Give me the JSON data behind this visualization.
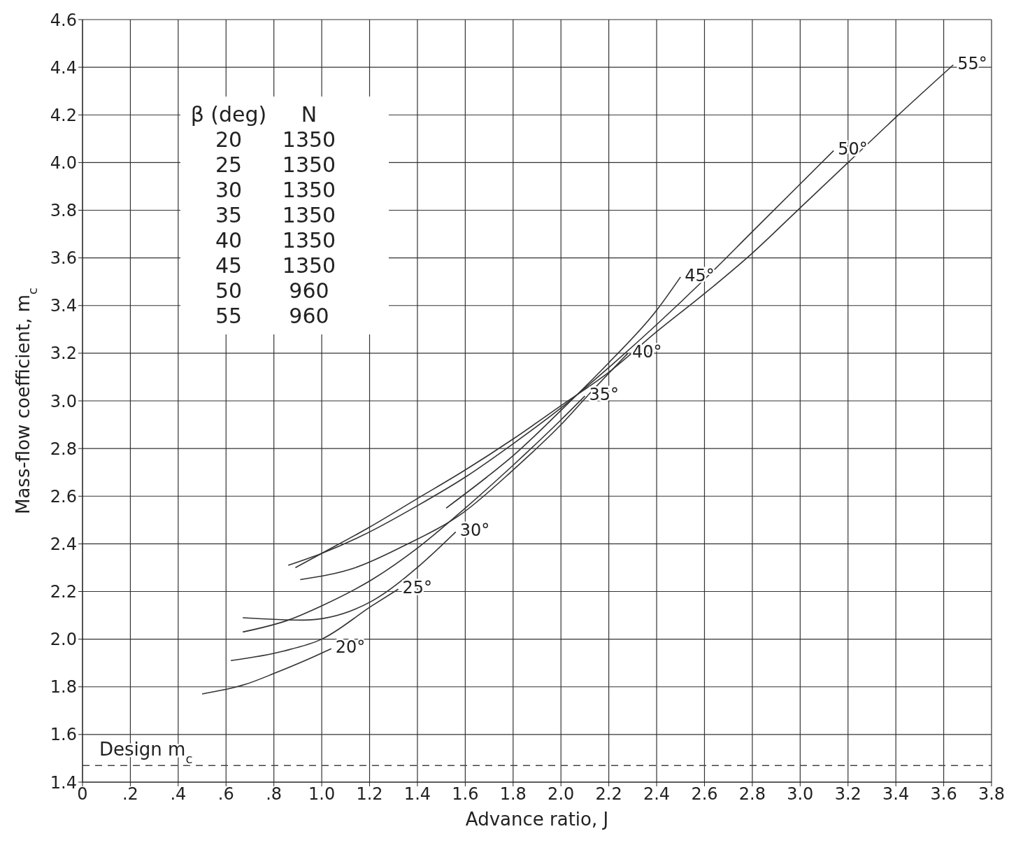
{
  "chart_data": {
    "type": "line",
    "xlabel": "Advance ratio, J",
    "ylabel": "Mass-flow coefficient, m$_{c}$",
    "xlim": [
      0,
      3.8
    ],
    "ylim": [
      1.4,
      4.6
    ],
    "xticks": [
      0,
      {
        "value": 0.2,
        "label": ".2"
      },
      {
        "value": 0.4,
        "label": ".4"
      },
      {
        "value": 0.6,
        "label": ".6"
      },
      {
        "value": 0.8,
        "label": ".8"
      },
      {
        "value": 1,
        "label": "1.0"
      },
      1.2,
      1.4,
      1.6,
      1.8,
      {
        "value": 2,
        "label": "2.0"
      },
      2.2,
      2.4,
      2.6,
      2.8,
      {
        "value": 3,
        "label": "3.0"
      },
      3.2,
      3.4,
      3.6,
      3.8
    ],
    "yticks": [
      1.4,
      1.6,
      1.8,
      {
        "value": 2,
        "label": "2.0"
      },
      2.2,
      2.4,
      2.6,
      2.8,
      {
        "value": 3,
        "label": "3.0"
      },
      3.2,
      3.4,
      3.6,
      3.8,
      {
        "value": 4,
        "label": "4.0"
      },
      4.2,
      4.4,
      4.6
    ],
    "grid": true,
    "legend": false,
    "marker": "none",
    "line_style": "solid",
    "series": [
      {
        "name": "20°",
        "color": "#333333",
        "x": [
          0.5,
          0.68,
          0.81,
          0.93,
          1.04
        ],
        "values": [
          1.77,
          1.81,
          1.86,
          1.91,
          1.96
        ]
      },
      {
        "name": "25°",
        "color": "#333333",
        "x": [
          0.62,
          0.84,
          1.0,
          1.21,
          1.32
        ],
        "values": [
          1.91,
          1.95,
          2.0,
          2.14,
          2.21
        ]
      },
      {
        "name": "30°",
        "color": "#333333",
        "x": [
          0.67,
          0.92,
          1.21,
          1.41,
          1.56
        ],
        "values": [
          2.09,
          2.08,
          2.16,
          2.31,
          2.45
        ]
      },
      {
        "name": "35°",
        "color": "#333333",
        "x": [
          0.67,
          0.86,
          1.0,
          1.21,
          1.41,
          1.6,
          1.8,
          2.0,
          2.1
        ],
        "values": [
          2.03,
          2.08,
          2.14,
          2.25,
          2.39,
          2.55,
          2.73,
          2.92,
          3.02
        ]
      },
      {
        "name": "40°",
        "color": "#333333",
        "x": [
          0.91,
          1.14,
          1.34,
          1.59,
          1.8,
          2.0,
          2.11,
          2.28
        ],
        "values": [
          2.25,
          2.3,
          2.39,
          2.53,
          2.71,
          2.9,
          3.02,
          3.2
        ]
      },
      {
        "name": "45°",
        "color": "#333333",
        "x": [
          1.52,
          1.69,
          1.8,
          2.0,
          2.2,
          2.4,
          2.5
        ],
        "values": [
          2.55,
          2.68,
          2.77,
          2.96,
          3.16,
          3.38,
          3.52
        ]
      },
      {
        "name": "50°",
        "color": "#333333",
        "x": [
          0.86,
          1.0,
          1.2,
          1.4,
          1.6,
          1.8,
          2.0,
          2.2,
          2.4,
          2.6,
          2.8,
          3.0,
          3.14
        ],
        "values": [
          2.31,
          2.36,
          2.45,
          2.56,
          2.68,
          2.82,
          2.97,
          3.14,
          3.32,
          3.51,
          3.71,
          3.91,
          4.05
        ]
      },
      {
        "name": "55°",
        "color": "#333333",
        "x": [
          0.89,
          1.0,
          1.2,
          1.4,
          1.6,
          1.8,
          2.0,
          2.2,
          2.4,
          2.6,
          2.8,
          3.0,
          3.2,
          3.4,
          3.64
        ],
        "values": [
          2.3,
          2.36,
          2.47,
          2.59,
          2.71,
          2.84,
          2.98,
          3.12,
          3.29,
          3.45,
          3.62,
          3.81,
          4.0,
          4.19,
          4.41
        ]
      }
    ],
    "ref_lines": [
      {
        "axis": "y",
        "value": 1.47,
        "label": "Design m$_{c}$",
        "line_style": "dashed",
        "color": "#444444"
      }
    ],
    "annotations": [
      "β (deg)   N",
      "20   1350",
      "25   1350",
      "30   1350",
      "35   1350",
      "40   1350",
      "45   1350",
      "50   960",
      "55   960"
    ]
  }
}
